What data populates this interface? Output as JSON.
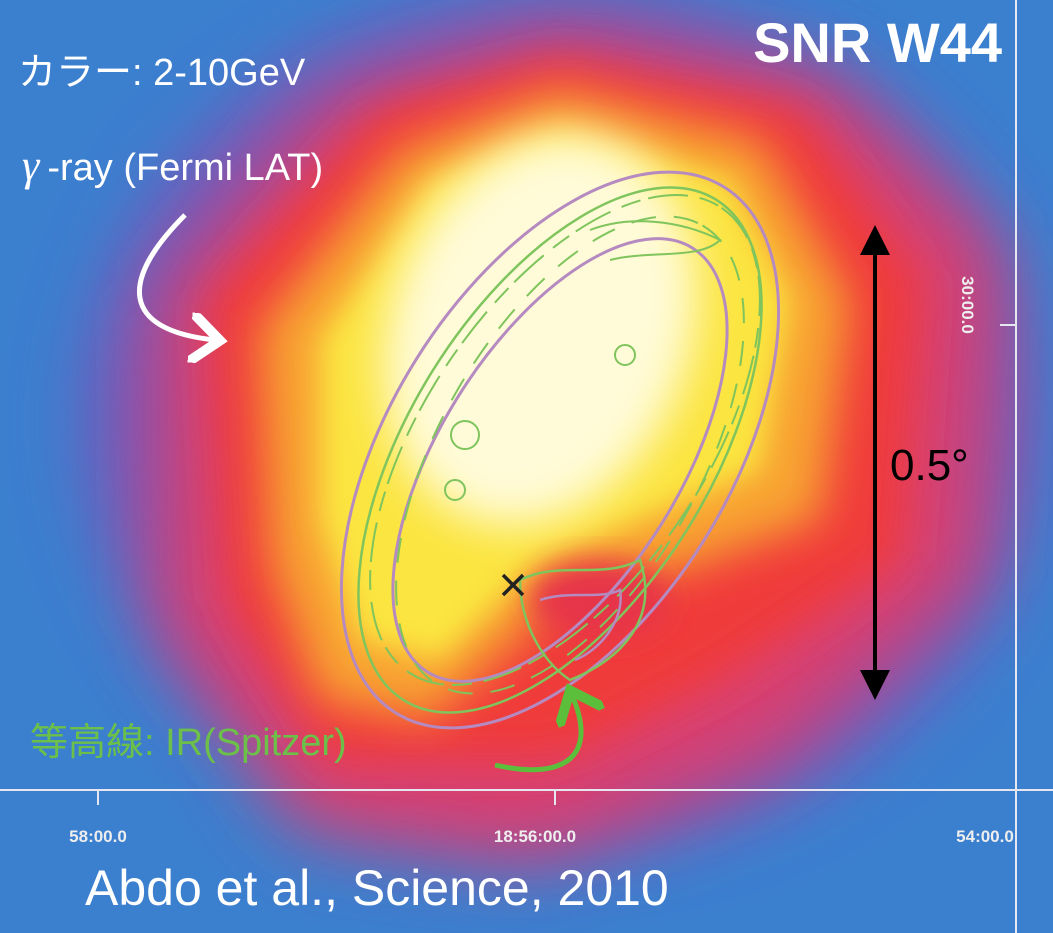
{
  "header": {
    "title": "SNR W44"
  },
  "labels": {
    "color_map": "カラー: 2-10GeV",
    "gamma_symbol": "γ",
    "gamma_text": "-ray (Fermi LAT)",
    "contour": "等高線: IR(Spitzer)",
    "scale": "0.5°",
    "credit": "Abdo et al., Science, 2010"
  },
  "axes": {
    "x_ticks": [
      "58:00.0",
      "18:56:00.0",
      "54:00.0"
    ],
    "y_ticks": [
      "30:00.0"
    ]
  }
}
